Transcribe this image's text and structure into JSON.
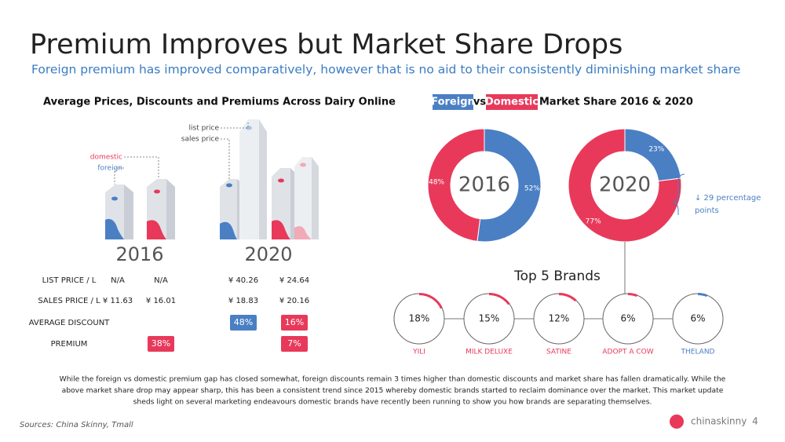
{
  "header": {
    "title": "Premium Improves but Market Share Drops",
    "subtitle": "Foreign premium has improved comparatively, however that is no aid to their consistently diminishing market share"
  },
  "prices": {
    "title": "Average Prices, Discounts and Premiums Across Dairy Online",
    "annotations": {
      "list_price": "list price",
      "sales_price": "sales price",
      "domestic": "domestic",
      "foreign": "foreign"
    },
    "years": [
      "2016",
      "2020"
    ],
    "rows": [
      {
        "label": "LIST PRICE / L",
        "cells": [
          "N/A",
          "N/A",
          "¥ 40.26",
          "¥ 24.64"
        ]
      },
      {
        "label": "SALES PRICE / L",
        "cells": [
          "¥ 11.63",
          "¥ 16.01",
          "¥ 18.83",
          "¥ 20.16"
        ]
      },
      {
        "label": "AVERAGE DISCOUNT",
        "cells": [
          null,
          null,
          "48%",
          "16%"
        ]
      },
      {
        "label": "PREMIUM",
        "cells": [
          null,
          "38%",
          null,
          "7%"
        ]
      }
    ]
  },
  "market_share": {
    "title_parts": [
      "Foreign",
      "vs",
      "Domestic",
      "Market Share 2016 & 2020"
    ],
    "charts": [
      {
        "type": "pie",
        "label": "2016",
        "values": [
          52,
          48
        ],
        "value_labels": [
          "52%",
          "48%"
        ],
        "colors": [
          "#4a7fc4",
          "#e8395b"
        ]
      },
      {
        "type": "pie",
        "label": "2020",
        "values": [
          23,
          77
        ],
        "value_labels": [
          "23%",
          "77%"
        ],
        "colors": [
          "#4a7fc4",
          "#e8395b"
        ]
      }
    ],
    "annotation": [
      "↓ 29 percentage",
      "points"
    ]
  },
  "top_brands": {
    "title": "Top 5 Brands",
    "brands": [
      {
        "name": "YILI",
        "value": 18,
        "value_label": "18%",
        "color": "#e8395b"
      },
      {
        "name": "MILK DELUXE",
        "value": 15,
        "value_label": "15%",
        "color": "#e8395b"
      },
      {
        "name": "SATINE",
        "value": 12,
        "value_label": "12%",
        "color": "#e8395b"
      },
      {
        "name": "ADOPT A COW",
        "value": 6,
        "value_label": "6%",
        "color": "#e8395b"
      },
      {
        "name": "THELAND",
        "value": 6,
        "value_label": "6%",
        "color": "#4a7fc4"
      }
    ]
  },
  "footer": {
    "paragraph": [
      "While the foreign vs domestic premium gap has closed somewhat, foreign discounts remain 3 times higher than domestic discounts and market share has fallen dramatically. While the",
      "above market share drop may appear sharp, this has been a consistent trend since 2015 whereby domestic brands started to reclaim dominance over the market. This market update",
      "sheds light on several marketing endeavours domestic brands have recently been running to show you how brands are separating themselves."
    ],
    "sources": "Sources: China Skinny, Tmall",
    "brand": "chinaskinny",
    "page": "4"
  }
}
